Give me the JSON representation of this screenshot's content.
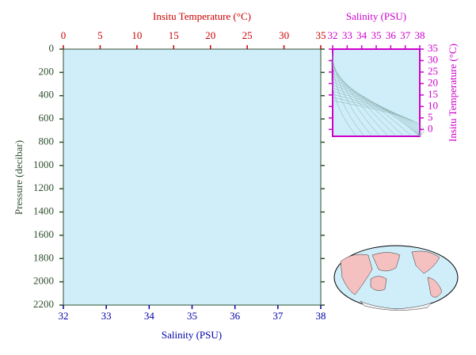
{
  "chart_data": [
    {
      "type": "profile",
      "y_label": "Pressure (decibar)",
      "ylim": [
        0,
        2200
      ],
      "y_reversed": true,
      "yticks": [
        0,
        200,
        400,
        600,
        800,
        1000,
        1200,
        1400,
        1600,
        1800,
        2000,
        2200
      ],
      "x_label": "Salinity (PSU)",
      "xlim": [
        32,
        38
      ],
      "xticks": [
        32,
        33,
        34,
        35,
        36,
        37,
        38
      ],
      "x2_label": "Insitu Temperature (°C)",
      "x2lim": [
        0,
        35
      ],
      "x2ticks": [
        0,
        5,
        10,
        15,
        20,
        25,
        30,
        35
      ]
    },
    {
      "type": "ts",
      "x_label": "Salinity (PSU)",
      "xlim": [
        32,
        38
      ],
      "xticks": [
        32,
        33,
        34,
        35,
        36,
        37,
        38
      ],
      "y_label": "Insitu Temperature (°C)",
      "ylim": [
        -3,
        35
      ],
      "yticks": [
        0,
        5,
        10,
        15,
        20,
        25,
        30,
        35
      ]
    }
  ]
}
